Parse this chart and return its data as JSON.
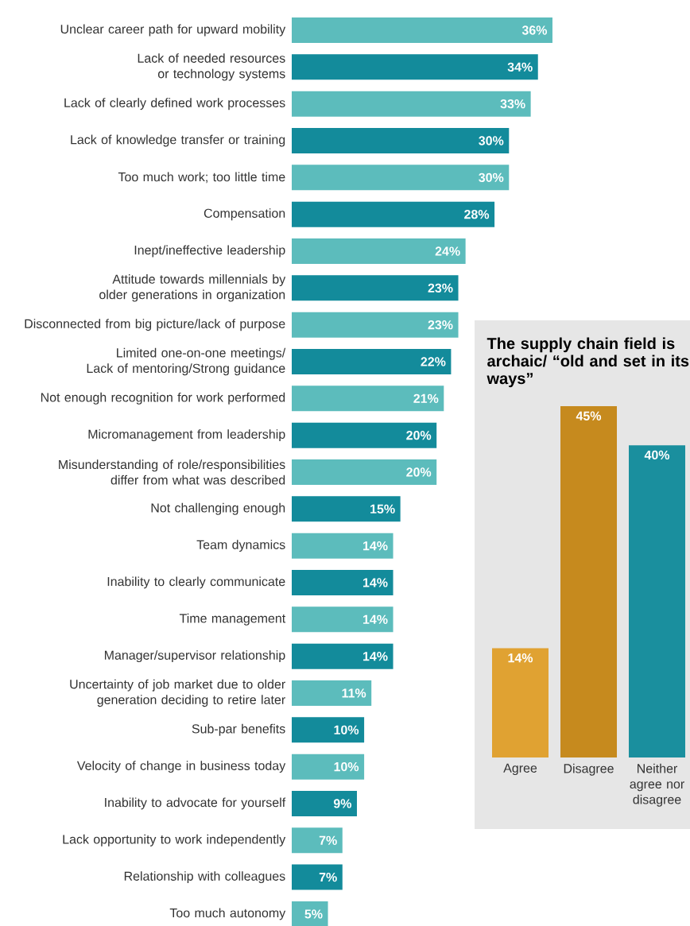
{
  "chart_data": [
    {
      "type": "bar",
      "orientation": "horizontal",
      "categories": [
        "Unclear career path for upward mobility",
        "Lack of needed resources or technology systems",
        "Lack of clearly defined work processes",
        "Lack of knowledge transfer or training",
        "Too much work; too little time",
        "Compensation",
        "Inept/ineffective leadership",
        "Attitude towards millennials by older generations in organization",
        "Disconnected from big picture/lack of purpose",
        "Limited one-on-one meetings/ Lack of mentoring/Strong guidance",
        "Not enough recognition for work performed",
        "Micromanagement from leadership",
        "Misunderstanding of role/responsibilities differ from what was described",
        "Not challenging enough",
        "Team dynamics",
        "Inability to clearly communicate",
        "Time management",
        "Manager/supervisor relationship",
        "Uncertainty of job market due to older generation deciding to retire later",
        "Sub-par benefits",
        "Velocity of change in business today",
        "Inability to advocate for yourself",
        "Lack opportunity to work independently",
        "Relationship with colleagues",
        "Too much autonomy"
      ],
      "values": [
        36,
        34,
        33,
        30,
        30,
        28,
        24,
        23,
        23,
        22,
        21,
        20,
        20,
        15,
        14,
        14,
        14,
        14,
        11,
        10,
        10,
        9,
        7,
        7,
        5
      ],
      "value_labels": [
        "36%",
        "34%",
        "33%",
        "30%",
        "30%",
        "28%",
        "24%",
        "23%",
        "23%",
        "22%",
        "21%",
        "20%",
        "20%",
        "15%",
        "14%",
        "14%",
        "14%",
        "14%",
        "11%",
        "10%",
        "10%",
        "9%",
        "7%",
        "7%",
        "5%"
      ],
      "colors": [
        "#5cbcbc",
        "#138b9b",
        "#5cbcbc",
        "#138b9b",
        "#5cbcbc",
        "#138b9b",
        "#5cbcbc",
        "#138b9b",
        "#5cbcbc",
        "#138b9b",
        "#5cbcbc",
        "#138b9b",
        "#5cbcbc",
        "#138b9b",
        "#5cbcbc",
        "#138b9b",
        "#5cbcbc",
        "#138b9b",
        "#5cbcbc",
        "#138b9b",
        "#5cbcbc",
        "#138b9b",
        "#5cbcbc",
        "#138b9b",
        "#5cbcbc"
      ]
    },
    {
      "type": "bar",
      "title": "The supply chain field is archaic/ “old and set in its ways”",
      "categories": [
        "Agree",
        "Disagree",
        "Neither agree nor disagree"
      ],
      "values": [
        14,
        45,
        40
      ],
      "value_labels": [
        "14%",
        "45%",
        "40%"
      ],
      "colors": [
        "#e0a232",
        "#c68a1e",
        "#1a8f9e"
      ]
    }
  ]
}
